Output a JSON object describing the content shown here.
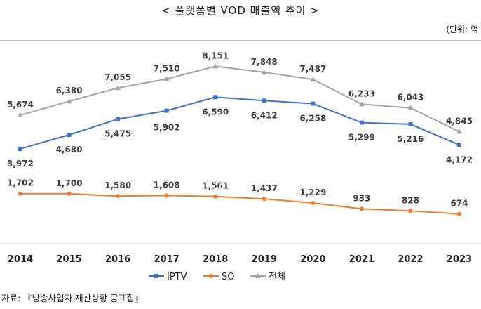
{
  "page": {
    "title": "< 플랫폼별 VOD 매출액 추이 >",
    "unit": "(단위: 억",
    "source": "자료: 『방송사업자 재산상황 공표집』"
  },
  "chart_data": {
    "type": "line",
    "title": "< 플랫폼별 VOD 매출액 추이 >",
    "unit": "(단위: 억",
    "x": [
      "2014",
      "2015",
      "2016",
      "2017",
      "2018",
      "2019",
      "2020",
      "2021",
      "2022",
      "2023"
    ],
    "series": [
      {
        "name": "IPTV",
        "color": "#4472c4",
        "marker": "square",
        "values": [
          3972,
          4680,
          5475,
          5902,
          6590,
          6412,
          6258,
          5299,
          5216,
          4172
        ],
        "labels": [
          "3,972",
          "4,680",
          "5,475",
          "5,902",
          "6,590",
          "6,412",
          "6,258",
          "5,299",
          "5,216",
          "4,172"
        ]
      },
      {
        "name": "SO",
        "color": "#ed7d31",
        "marker": "circle",
        "values": [
          1702,
          1700,
          1580,
          1608,
          1561,
          1437,
          1229,
          933,
          828,
          674
        ],
        "labels": [
          "1,702",
          "1,700",
          "1,580",
          "1,608",
          "1,561",
          "1,437",
          "1,229",
          "933",
          "828",
          "674"
        ]
      },
      {
        "name": "전체",
        "color": "#a5a5a5",
        "marker": "triangle",
        "values": [
          5674,
          6380,
          7055,
          7510,
          8151,
          7848,
          7487,
          6233,
          6043,
          4845
        ],
        "labels": [
          "5,674",
          "6,380",
          "7,055",
          "7,510",
          "8,151",
          "7,848",
          "7,487",
          "6,233",
          "6,043",
          "4,845"
        ]
      }
    ],
    "legend_position": "bottom",
    "grid": false,
    "data_labels": true
  }
}
